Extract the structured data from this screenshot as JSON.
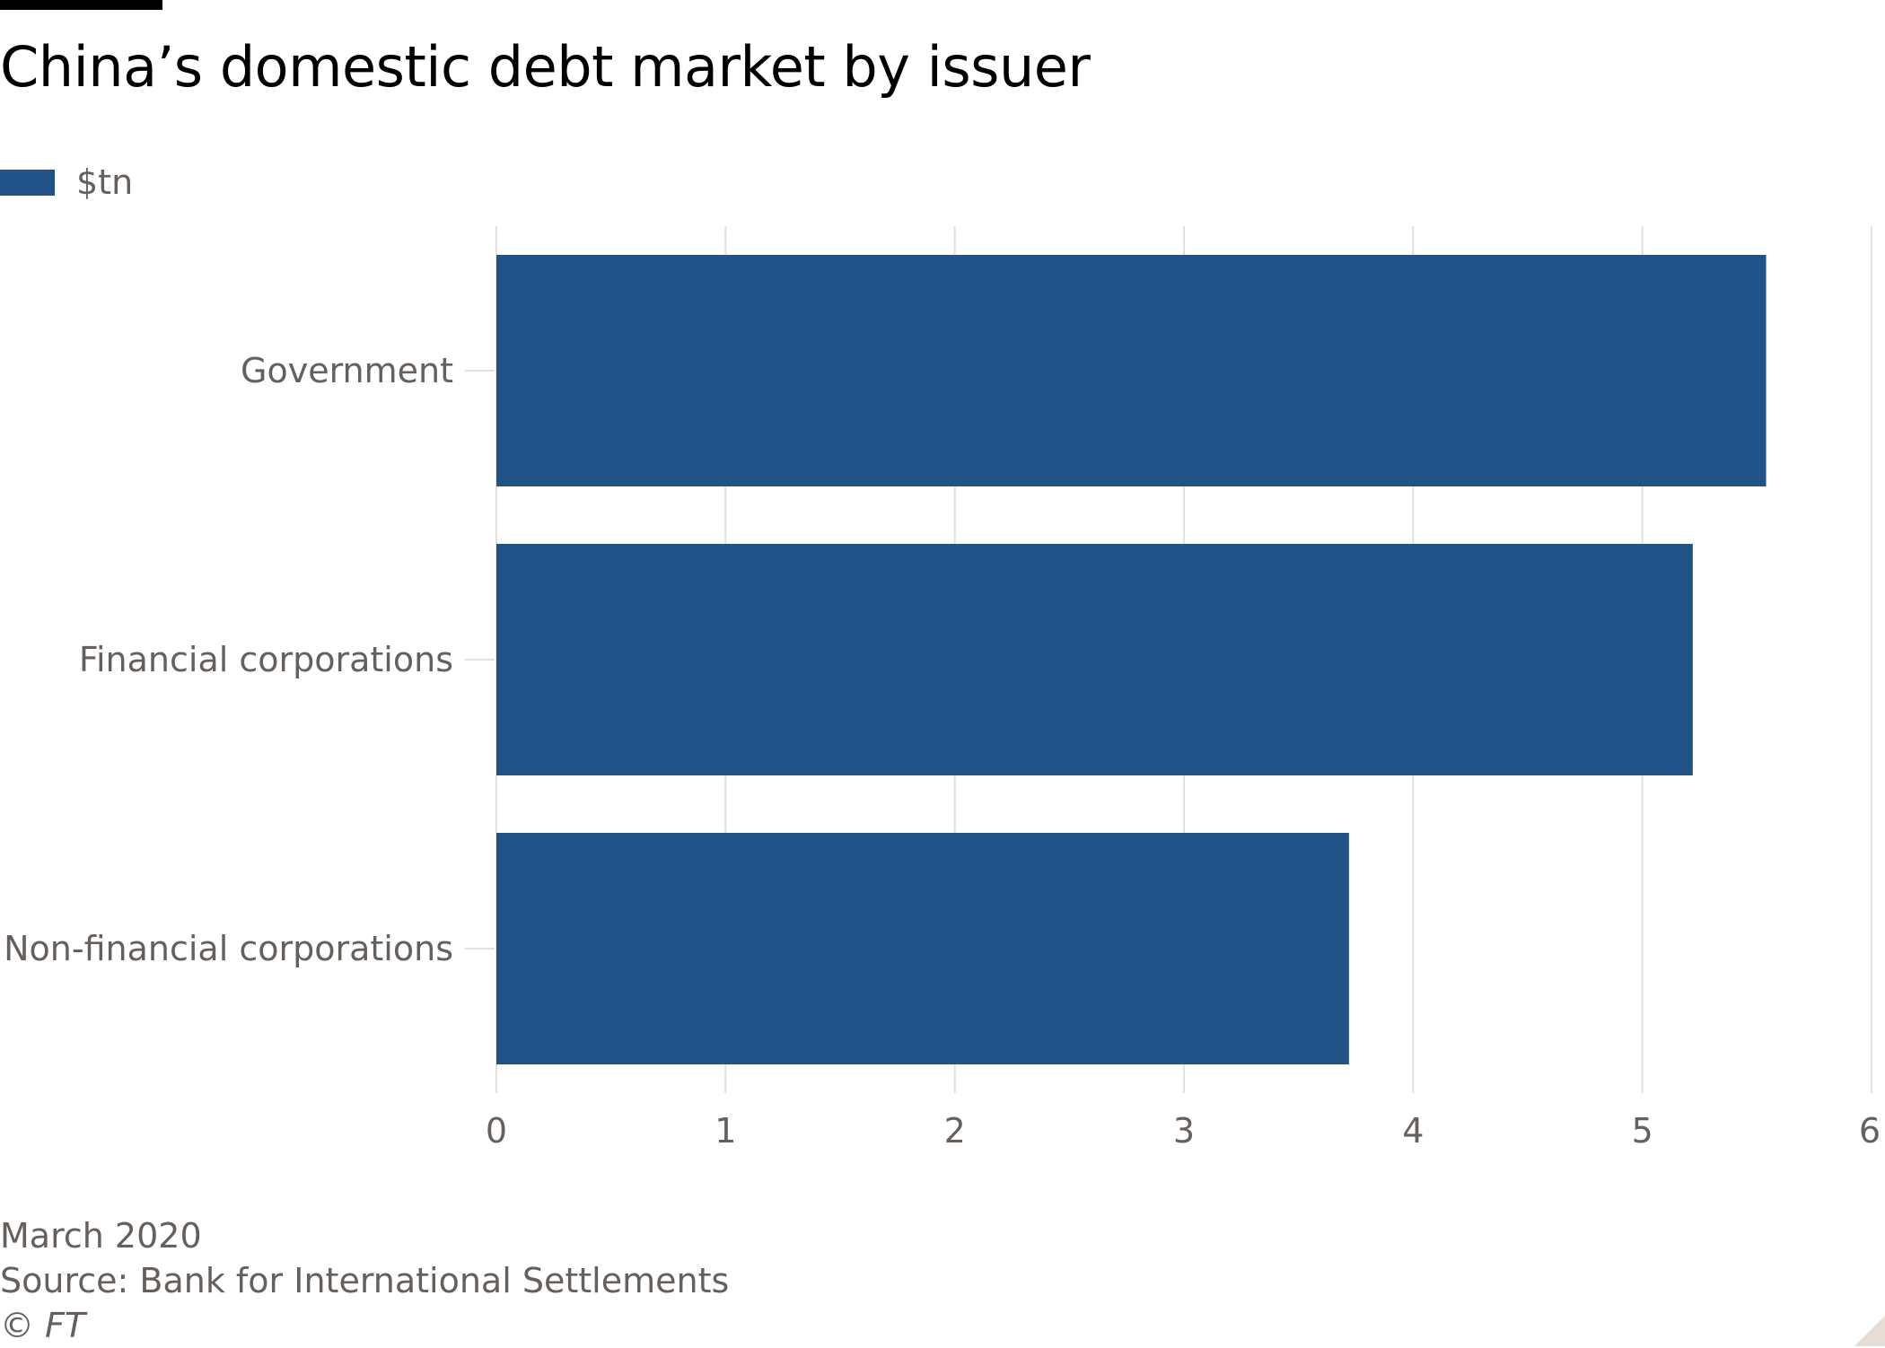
{
  "header": {
    "title": "China’s domestic debt market by issuer"
  },
  "legend": {
    "label": "$tn"
  },
  "colors": {
    "bar": "#215389",
    "grid": "#e6e0d9",
    "tick_text": "#66605c",
    "top_rule": "#000000"
  },
  "chart_data": {
    "type": "bar",
    "orientation": "horizontal",
    "title": "China’s domestic debt market by issuer",
    "categories": [
      "Government",
      "Financial corporations",
      "Non-financial corporations"
    ],
    "series": [
      {
        "name": "$tn",
        "values": [
          5.54,
          5.22,
          3.72
        ]
      }
    ],
    "xlim": [
      0,
      6
    ],
    "xticks": [
      "0",
      "1",
      "2",
      "3",
      "4",
      "5",
      "6"
    ],
    "xlabel": "",
    "ylabel": "",
    "grid": true,
    "legend_position": "top-left"
  },
  "footer": {
    "date": "March 2020",
    "source": "Source: Bank for International Settlements",
    "copyright": "© FT"
  }
}
